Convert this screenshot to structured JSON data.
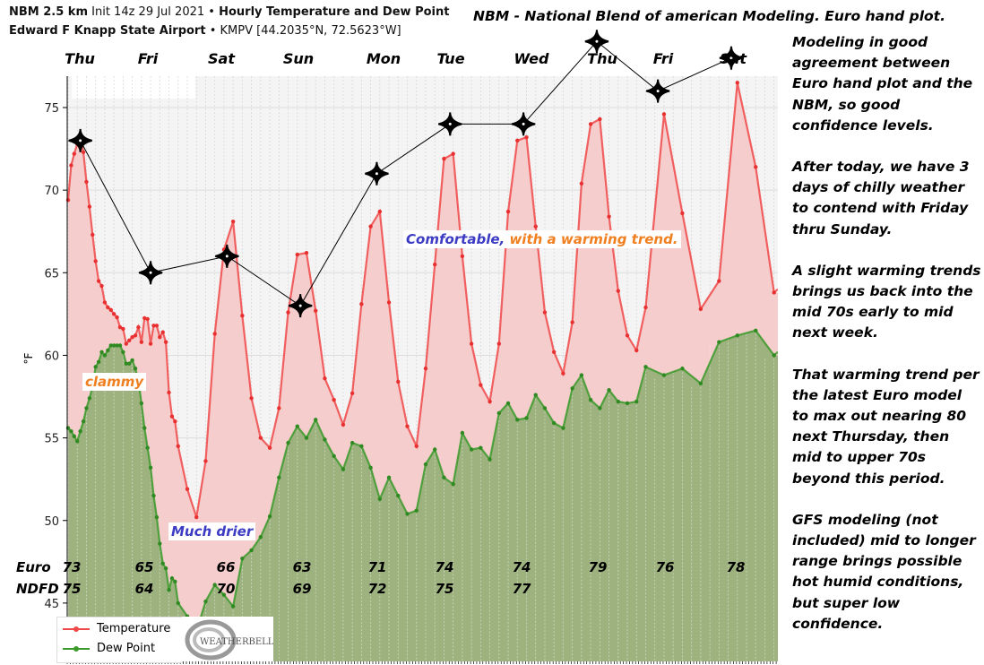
{
  "header": {
    "model": "NBM 2.5 km",
    "init": "Init 14z 29 Jul 2021",
    "bullet": "•",
    "product": "Hourly Temperature and Dew Point",
    "station": "Edward F Knapp State Airport",
    "station_id": "KMPV [44.2035°N, 72.5623°W]"
  },
  "headline": "NBM - National Blend of american Modeling. Euro hand plot.",
  "commentary": [
    "Modeling in good agreement between Euro hand plot and the NBM, so good confidence levels.",
    "After today, we have 3 days of chilly weather to contend with Friday thru Sunday.",
    "A slight warming trends brings us back into the mid 70s early to mid next week.",
    "That warming trend per the latest Euro model to max out nearing 80 next Thursday, then mid to upper 70s beyond this period.",
    "GFS modeling (not included) mid to longer range brings possible hot humid conditions, but super low confidence."
  ],
  "days": [
    "Thu",
    "Fri",
    "Sat",
    "Sun",
    "Mon",
    "Tue",
    "Wed",
    "Thu",
    "Fri",
    "Sat"
  ],
  "annotations": {
    "clammy": "clammy",
    "much_drier": "Much drier",
    "comfortable": "Comfortable,",
    "warming": "with a warming trend."
  },
  "rows": {
    "euro_label": "Euro",
    "ndfd_label": "NDFD",
    "euro": [
      "73",
      "65",
      "66",
      "63",
      "71",
      "74",
      "74",
      "79",
      "76",
      "78"
    ],
    "ndfd": [
      "75",
      "64",
      "70",
      "69",
      "72",
      "75",
      "77"
    ]
  },
  "logo_text": "WEATHERBELL",
  "colors": {
    "temperature": "#f04848",
    "temperature_fill": "#f6cdcd",
    "dew_point": "#3a9a2a",
    "dew_point_fill": "#9db27e",
    "plot_bg": "#f4f4f4",
    "clammy": "#f07f20",
    "drier": "#3b3bc4"
  },
  "chart_data": {
    "type": "area",
    "ylabel": "°F",
    "yticks": [
      45,
      50,
      55,
      60,
      65,
      70,
      75
    ],
    "ylim": [
      41.6,
      76.9
    ],
    "grid": true,
    "legend_placement": "bottom-left",
    "x": [
      "2021-07-29T10:00",
      "2021-07-29T11:00",
      "2021-07-29T12:00",
      "2021-07-29T13:00",
      "2021-07-29T14:00",
      "2021-07-29T15:00",
      "2021-07-29T16:00",
      "2021-07-29T17:00",
      "2021-07-29T18:00",
      "2021-07-29T19:00",
      "2021-07-29T20:00",
      "2021-07-29T21:00",
      "2021-07-29T22:00",
      "2021-07-29T23:00",
      "2021-07-30T00:00",
      "2021-07-30T01:00",
      "2021-07-30T02:00",
      "2021-07-30T03:00",
      "2021-07-30T04:00",
      "2021-07-30T05:00",
      "2021-07-30T06:00",
      "2021-07-30T07:00",
      "2021-07-30T08:00",
      "2021-07-30T09:00",
      "2021-07-30T10:00",
      "2021-07-30T11:00",
      "2021-07-30T12:00",
      "2021-07-30T13:00",
      "2021-07-30T14:00",
      "2021-07-30T15:00",
      "2021-07-30T16:00",
      "2021-07-30T17:00",
      "2021-07-30T18:00",
      "2021-07-30T19:00",
      "2021-07-30T20:00",
      "2021-07-30T21:00",
      "2021-07-30T22:00",
      "2021-07-31T01:00",
      "2021-07-31T04:00",
      "2021-07-31T07:00",
      "2021-07-31T10:00",
      "2021-07-31T13:00",
      "2021-07-31T16:00",
      "2021-07-31T19:00",
      "2021-07-31T22:00",
      "2021-08-01T01:00",
      "2021-08-01T04:00",
      "2021-08-01T07:00",
      "2021-08-01T10:00",
      "2021-08-01T13:00",
      "2021-08-01T16:00",
      "2021-08-01T19:00",
      "2021-08-01T22:00",
      "2021-08-02T01:00",
      "2021-08-02T04:00",
      "2021-08-02T07:00",
      "2021-08-02T10:00",
      "2021-08-02T13:00",
      "2021-08-02T16:00",
      "2021-08-02T19:00",
      "2021-08-02T22:00",
      "2021-08-03T01:00",
      "2021-08-03T04:00",
      "2021-08-03T07:00",
      "2021-08-03T10:00",
      "2021-08-03T13:00",
      "2021-08-03T16:00",
      "2021-08-03T19:00",
      "2021-08-03T22:00",
      "2021-08-04T01:00",
      "2021-08-04T04:00",
      "2021-08-04T07:00",
      "2021-08-04T10:00",
      "2021-08-04T13:00",
      "2021-08-04T16:00",
      "2021-08-04T19:00",
      "2021-08-04T22:00",
      "2021-08-05T01:00",
      "2021-08-05T04:00",
      "2021-08-05T07:00",
      "2021-08-05T10:00",
      "2021-08-05T13:00",
      "2021-08-05T16:00",
      "2021-08-05T19:00",
      "2021-08-05T22:00",
      "2021-08-06T01:00",
      "2021-08-06T04:00",
      "2021-08-06T07:00",
      "2021-08-06T13:00",
      "2021-08-06T19:00",
      "2021-08-07T01:00",
      "2021-08-07T07:00",
      "2021-08-07T13:00",
      "2021-08-07T19:00",
      "2021-08-08T01:00"
    ],
    "series": [
      {
        "name": "Temperature",
        "values": [
          69.4,
          71.5,
          72.2,
          72.8,
          73.2,
          72.3,
          70.5,
          69.0,
          67.3,
          65.7,
          64.5,
          64.2,
          63.2,
          62.9,
          62.75,
          62.5,
          62.3,
          61.7,
          61.6,
          60.7,
          60.9,
          61.1,
          61.2,
          61.7,
          60.8,
          62.25,
          62.2,
          60.7,
          61.8,
          61.8,
          61.1,
          61.4,
          60.8,
          57.75,
          56.3,
          56.0,
          54.5,
          51.9,
          50.2,
          53.6,
          61.3,
          66.4,
          68.1,
          62.4,
          57.4,
          55.0,
          54.4,
          56.8,
          62.6,
          66.1,
          66.2,
          62.7,
          58.6,
          57.3,
          55.8,
          57.7,
          63.1,
          67.8,
          68.7,
          63.2,
          58.4,
          55.7,
          54.5,
          59.2,
          65.5,
          71.9,
          72.2,
          66.0,
          60.7,
          58.2,
          57.2,
          60.7,
          68.7,
          73.0,
          73.2,
          67.8,
          62.6,
          60.2,
          58.9,
          62.0,
          70.4,
          74.0,
          74.3,
          68.4,
          63.9,
          61.2,
          60.3,
          62.9,
          74.6,
          68.6,
          62.8,
          64.5,
          76.5,
          71.4,
          63.8
        ]
      },
      {
        "name": "Dew Point",
        "values": [
          55.6,
          55.4,
          55.1,
          54.8,
          55.4,
          56.0,
          56.8,
          57.4,
          58.1,
          59.3,
          59.6,
          60.2,
          60.0,
          60.3,
          60.6,
          60.6,
          60.6,
          60.6,
          60.2,
          59.5,
          59.5,
          59.7,
          59.2,
          58.5,
          57.1,
          55.6,
          54.4,
          53.2,
          51.5,
          50.2,
          48.6,
          47.4,
          47.1,
          45.8,
          46.5,
          46.3,
          45.0,
          44.2,
          43.3,
          45.1,
          46.1,
          45.5,
          44.8,
          47.7,
          48.2,
          49.0,
          50.25,
          52.6,
          54.7,
          55.7,
          55.0,
          56.1,
          54.9,
          53.9,
          53.1,
          54.7,
          54.5,
          53.2,
          51.3,
          52.6,
          51.5,
          50.4,
          50.6,
          53.4,
          54.3,
          52.6,
          52.2,
          55.3,
          54.3,
          54.4,
          53.7,
          56.5,
          57.1,
          56.1,
          56.2,
          57.6,
          56.8,
          55.9,
          55.6,
          58.0,
          58.8,
          57.3,
          56.8,
          57.9,
          57.2,
          57.1,
          57.2,
          59.3,
          58.8,
          59.2,
          58.3,
          60.8,
          61.2,
          61.5,
          60.0
        ]
      }
    ],
    "euro_hand_plot": {
      "x": [
        "2021-07-29T14:00",
        "2021-07-30T13:00",
        "2021-07-31T14:00",
        "2021-08-01T14:00",
        "2021-08-02T15:00",
        "2021-08-03T15:00",
        "2021-08-04T15:00",
        "2021-08-05T15:00",
        "2021-08-06T11:00",
        "2021-08-07T11:00"
      ],
      "values": [
        73,
        65,
        66,
        63,
        71,
        74,
        74,
        79,
        76,
        78
      ]
    }
  }
}
